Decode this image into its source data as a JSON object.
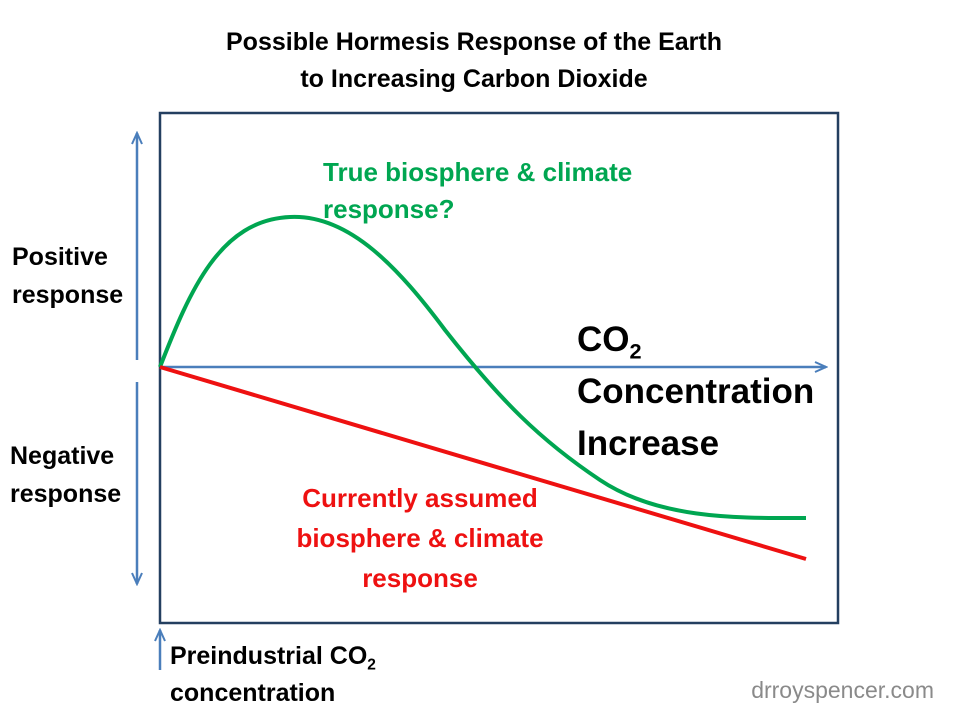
{
  "title": {
    "line1": "Possible Hormesis Response of the Earth",
    "line2": "to Increasing Carbon Dioxide"
  },
  "axis": {
    "positive_line1": "Positive",
    "positive_line2": "response",
    "negative_line1": "Negative",
    "negative_line2": "response",
    "x_line1_main": "CO",
    "x_line1_sub": "2",
    "x_line2": "Concentration",
    "x_line3": "Increase"
  },
  "curves": {
    "true_response_line1": "True biosphere & climate",
    "true_response_line2": "response?",
    "true_response_color": "#00a651",
    "assumed_response_line1": "Currently assumed",
    "assumed_response_line2": "biosphere & climate",
    "assumed_response_line3": "response",
    "assumed_response_color": "#ee1111"
  },
  "preindustrial": {
    "line1_main": "Preindustrial CO",
    "line1_sub": "2",
    "line2": "concentration"
  },
  "watermark": "drroyspencer.com",
  "colors": {
    "axis_arrow": "#4a7ebb",
    "box_border": "#243f60"
  }
}
